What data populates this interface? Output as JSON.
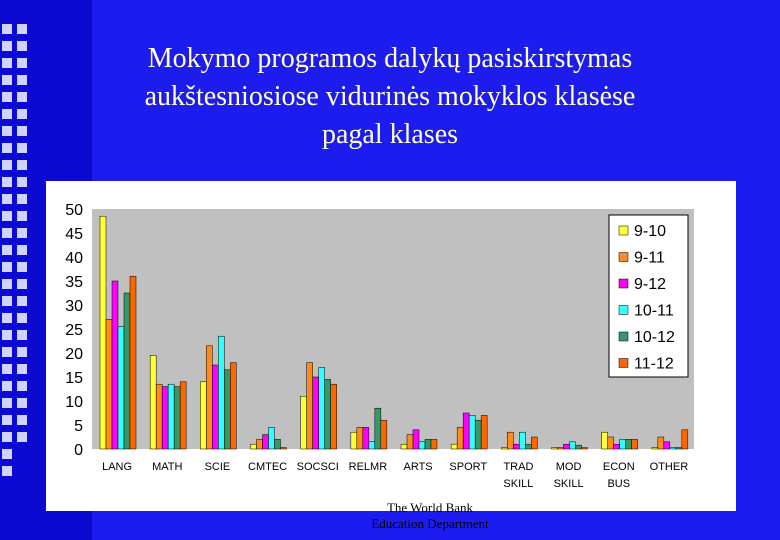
{
  "slide": {
    "title_lines": [
      "Mokymo programos dalykų pasiskirstymas",
      "aukštesniosiose vidurinės mokyklos klasėse",
      "pagal klases"
    ],
    "footer_lines": [
      "The World Bank",
      "Education Department"
    ]
  },
  "colors": {
    "background": "#1c1cf0",
    "plot_area": "#c0c0c0",
    "title_text": "#ffffcc"
  },
  "chart_data": {
    "type": "bar",
    "title": "",
    "xlabel": "",
    "ylabel": "",
    "ylim": [
      0,
      50
    ],
    "yticks": [
      0,
      5,
      10,
      15,
      20,
      25,
      30,
      35,
      40,
      45,
      50
    ],
    "grid": false,
    "legend_position": "top-right",
    "categories": [
      [
        "LANG"
      ],
      [
        "MATH"
      ],
      [
        "SCIE"
      ],
      [
        "CMTEC"
      ],
      [
        "SOCSCI"
      ],
      [
        "RELMR"
      ],
      [
        "ARTS"
      ],
      [
        "SPORT"
      ],
      [
        "TRAD",
        "SKILL"
      ],
      [
        "MOD",
        "SKILL"
      ],
      [
        "ECON",
        "BUS"
      ],
      [
        "OTHER"
      ]
    ],
    "series": [
      {
        "name": "9-10",
        "color": "#ffff33",
        "values": [
          48.5,
          19.5,
          14,
          1,
          11,
          3.5,
          1,
          1,
          0.3,
          0.3,
          3.5,
          0.3
        ]
      },
      {
        "name": "9-11",
        "color": "#ff8c1a",
        "values": [
          27,
          13.5,
          21.5,
          2,
          18,
          4.5,
          3,
          4.5,
          3.5,
          0.3,
          2.5,
          2.5
        ]
      },
      {
        "name": "9-12",
        "color": "#ff00ff",
        "values": [
          35,
          13,
          17.5,
          3,
          15,
          4.5,
          4,
          7.5,
          1,
          1,
          1,
          1.5
        ]
      },
      {
        "name": "10-11",
        "color": "#33ffff",
        "values": [
          25.5,
          13.5,
          23.5,
          4.5,
          17,
          1.5,
          1.5,
          7,
          3.5,
          1.5,
          2,
          0.3
        ]
      },
      {
        "name": "10-12",
        "color": "#339966",
        "values": [
          32.5,
          13,
          16.5,
          2,
          14.5,
          8.5,
          2,
          6,
          1,
          0.8,
          2,
          0.3
        ]
      },
      {
        "name": "11-12",
        "color": "#ff6600",
        "values": [
          36,
          14,
          18,
          0.3,
          13.5,
          6,
          2,
          7,
          2.5,
          0.3,
          2,
          4
        ]
      }
    ]
  }
}
